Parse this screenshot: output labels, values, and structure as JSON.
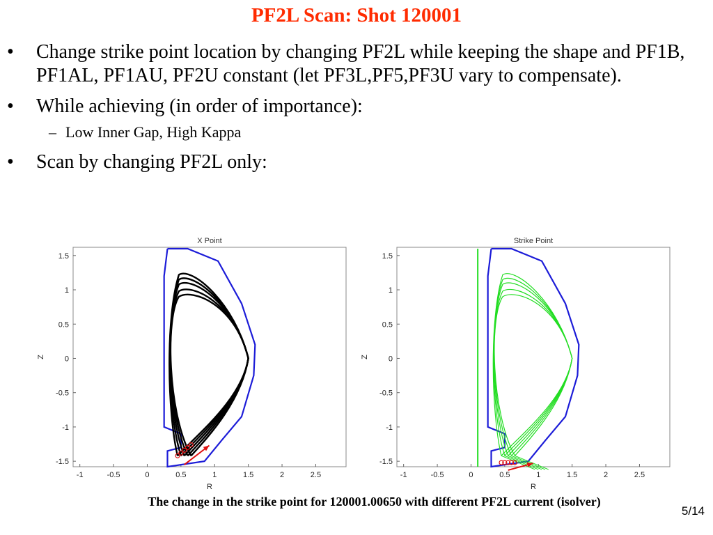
{
  "slide": {
    "title": "PF2L Scan: Shot 120001",
    "bullets": [
      {
        "marker": "•",
        "text": "Change strike point location by changing PF2L while keeping the shape and PF1B, PF1AL, PF1AU, PF2U constant (let PF3L,PF5,PF3U vary to compensate)."
      },
      {
        "marker": "•",
        "text": "While achieving (in order of importance):"
      },
      {
        "marker": "•",
        "text": "Scan by changing PF2L only:"
      }
    ],
    "sub_bullet": {
      "marker": "–",
      "text": "Low Inner Gap, High Kappa"
    },
    "caption": "The change in the strike point for 120001.00650 with different PF2L current (isolver)",
    "page": "5/14"
  },
  "chart_data": [
    {
      "type": "line",
      "title": "X Point",
      "xlabel": "R",
      "ylabel": "Z",
      "xlim": [
        -1.1,
        2.95
      ],
      "ylim": [
        -1.58,
        1.62
      ],
      "xticks": [
        "-1",
        "-0.5",
        "0",
        "0.5",
        "1",
        "1.5",
        "2",
        "2.5"
      ],
      "yticks": [
        "1.5",
        "1",
        "0.5",
        "0",
        "-0.5",
        "-1",
        "-1.5"
      ],
      "colors": {
        "wall": "#1c1cd8",
        "flux": "#000000",
        "arrow": "#e01010"
      }
    },
    {
      "type": "line",
      "title": "Strike Point",
      "xlabel": "R",
      "ylabel": "Z",
      "xlim": [
        -1.1,
        2.95
      ],
      "ylim": [
        -1.58,
        1.62
      ],
      "xticks": [
        "-1",
        "-0.5",
        "0",
        "0.5",
        "1",
        "1.5",
        "2",
        "2.5"
      ],
      "yticks": [
        "1.5",
        "1",
        "0.5",
        "0",
        "-0.5",
        "-1",
        "-1.5"
      ],
      "colors": {
        "wall": "#1c1cd8",
        "flux": "#22dd22",
        "arrow": "#e01010"
      }
    }
  ]
}
